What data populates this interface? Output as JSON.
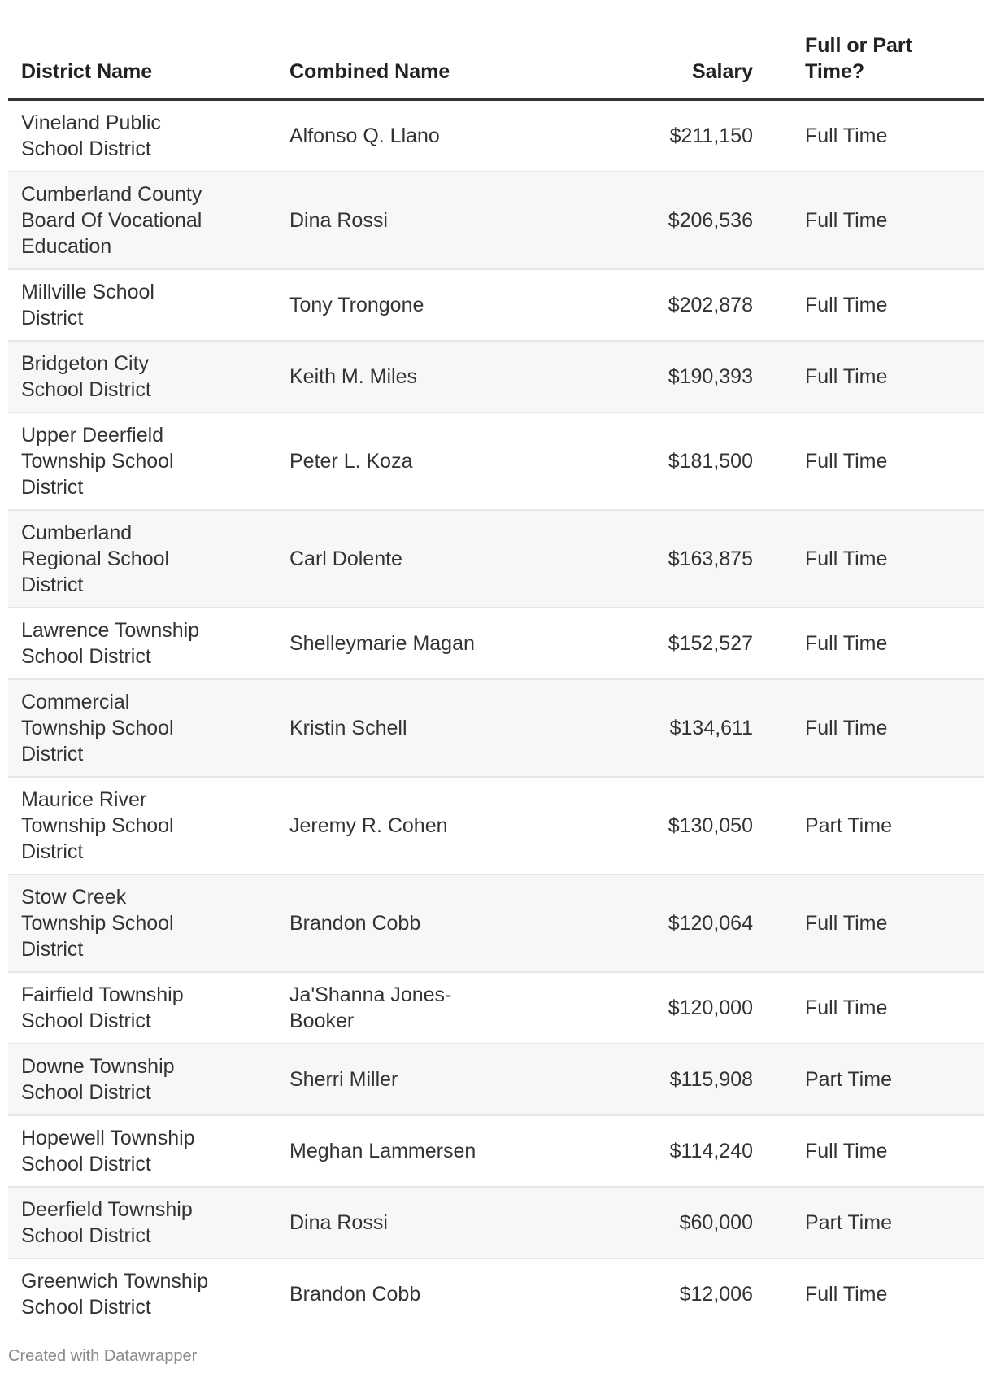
{
  "table": {
    "headers": {
      "district": "District Name",
      "name": "Combined Name",
      "salary": "Salary",
      "status": "Full or Part Time?"
    },
    "rows": [
      {
        "district": "Vineland Public School District",
        "name": "Alfonso Q. Llano",
        "salary": "$211,150",
        "status": "Full Time"
      },
      {
        "district": "Cumberland County Board Of Vocational Education",
        "name": "Dina Rossi",
        "salary": "$206,536",
        "status": "Full Time"
      },
      {
        "district": "Millville School District",
        "name": "Tony Trongone",
        "salary": "$202,878",
        "status": "Full Time"
      },
      {
        "district": "Bridgeton City School District",
        "name": "Keith M. Miles",
        "salary": "$190,393",
        "status": "Full Time"
      },
      {
        "district": "Upper Deerfield Township School District",
        "name": "Peter L. Koza",
        "salary": "$181,500",
        "status": "Full Time"
      },
      {
        "district": "Cumberland Regional School District",
        "name": "Carl Dolente",
        "salary": "$163,875",
        "status": "Full Time"
      },
      {
        "district": "Lawrence Township School District",
        "name": "Shelleymarie Magan",
        "salary": "$152,527",
        "status": "Full Time"
      },
      {
        "district": "Commercial Township School District",
        "name": "Kristin Schell",
        "salary": "$134,611",
        "status": "Full Time"
      },
      {
        "district": "Maurice River Township School District",
        "name": "Jeremy R. Cohen",
        "salary": "$130,050",
        "status": "Part Time"
      },
      {
        "district": "Stow Creek Township School District",
        "name": "Brandon Cobb",
        "salary": "$120,064",
        "status": "Full Time"
      },
      {
        "district": "Fairfield Township School District",
        "name": "Ja'Shanna Jones-Booker",
        "salary": "$120,000",
        "status": "Full Time"
      },
      {
        "district": "Downe Township School District",
        "name": "Sherri Miller",
        "salary": "$115,908",
        "status": "Part Time"
      },
      {
        "district": "Hopewell Township School District",
        "name": "Meghan Lammersen",
        "salary": "$114,240",
        "status": "Full Time"
      },
      {
        "district": "Deerfield Township School District",
        "name": "Dina Rossi",
        "salary": "$60,000",
        "status": "Part Time"
      },
      {
        "district": "Greenwich Township School District",
        "name": "Brandon Cobb",
        "salary": "$12,006",
        "status": "Full Time"
      }
    ]
  },
  "footer": {
    "credit": "Created with Datawrapper"
  },
  "colors": {
    "text": "#333333",
    "stripe": "#f7f7f7",
    "header_rule": "#333333",
    "credit": "#8a8a8a"
  }
}
